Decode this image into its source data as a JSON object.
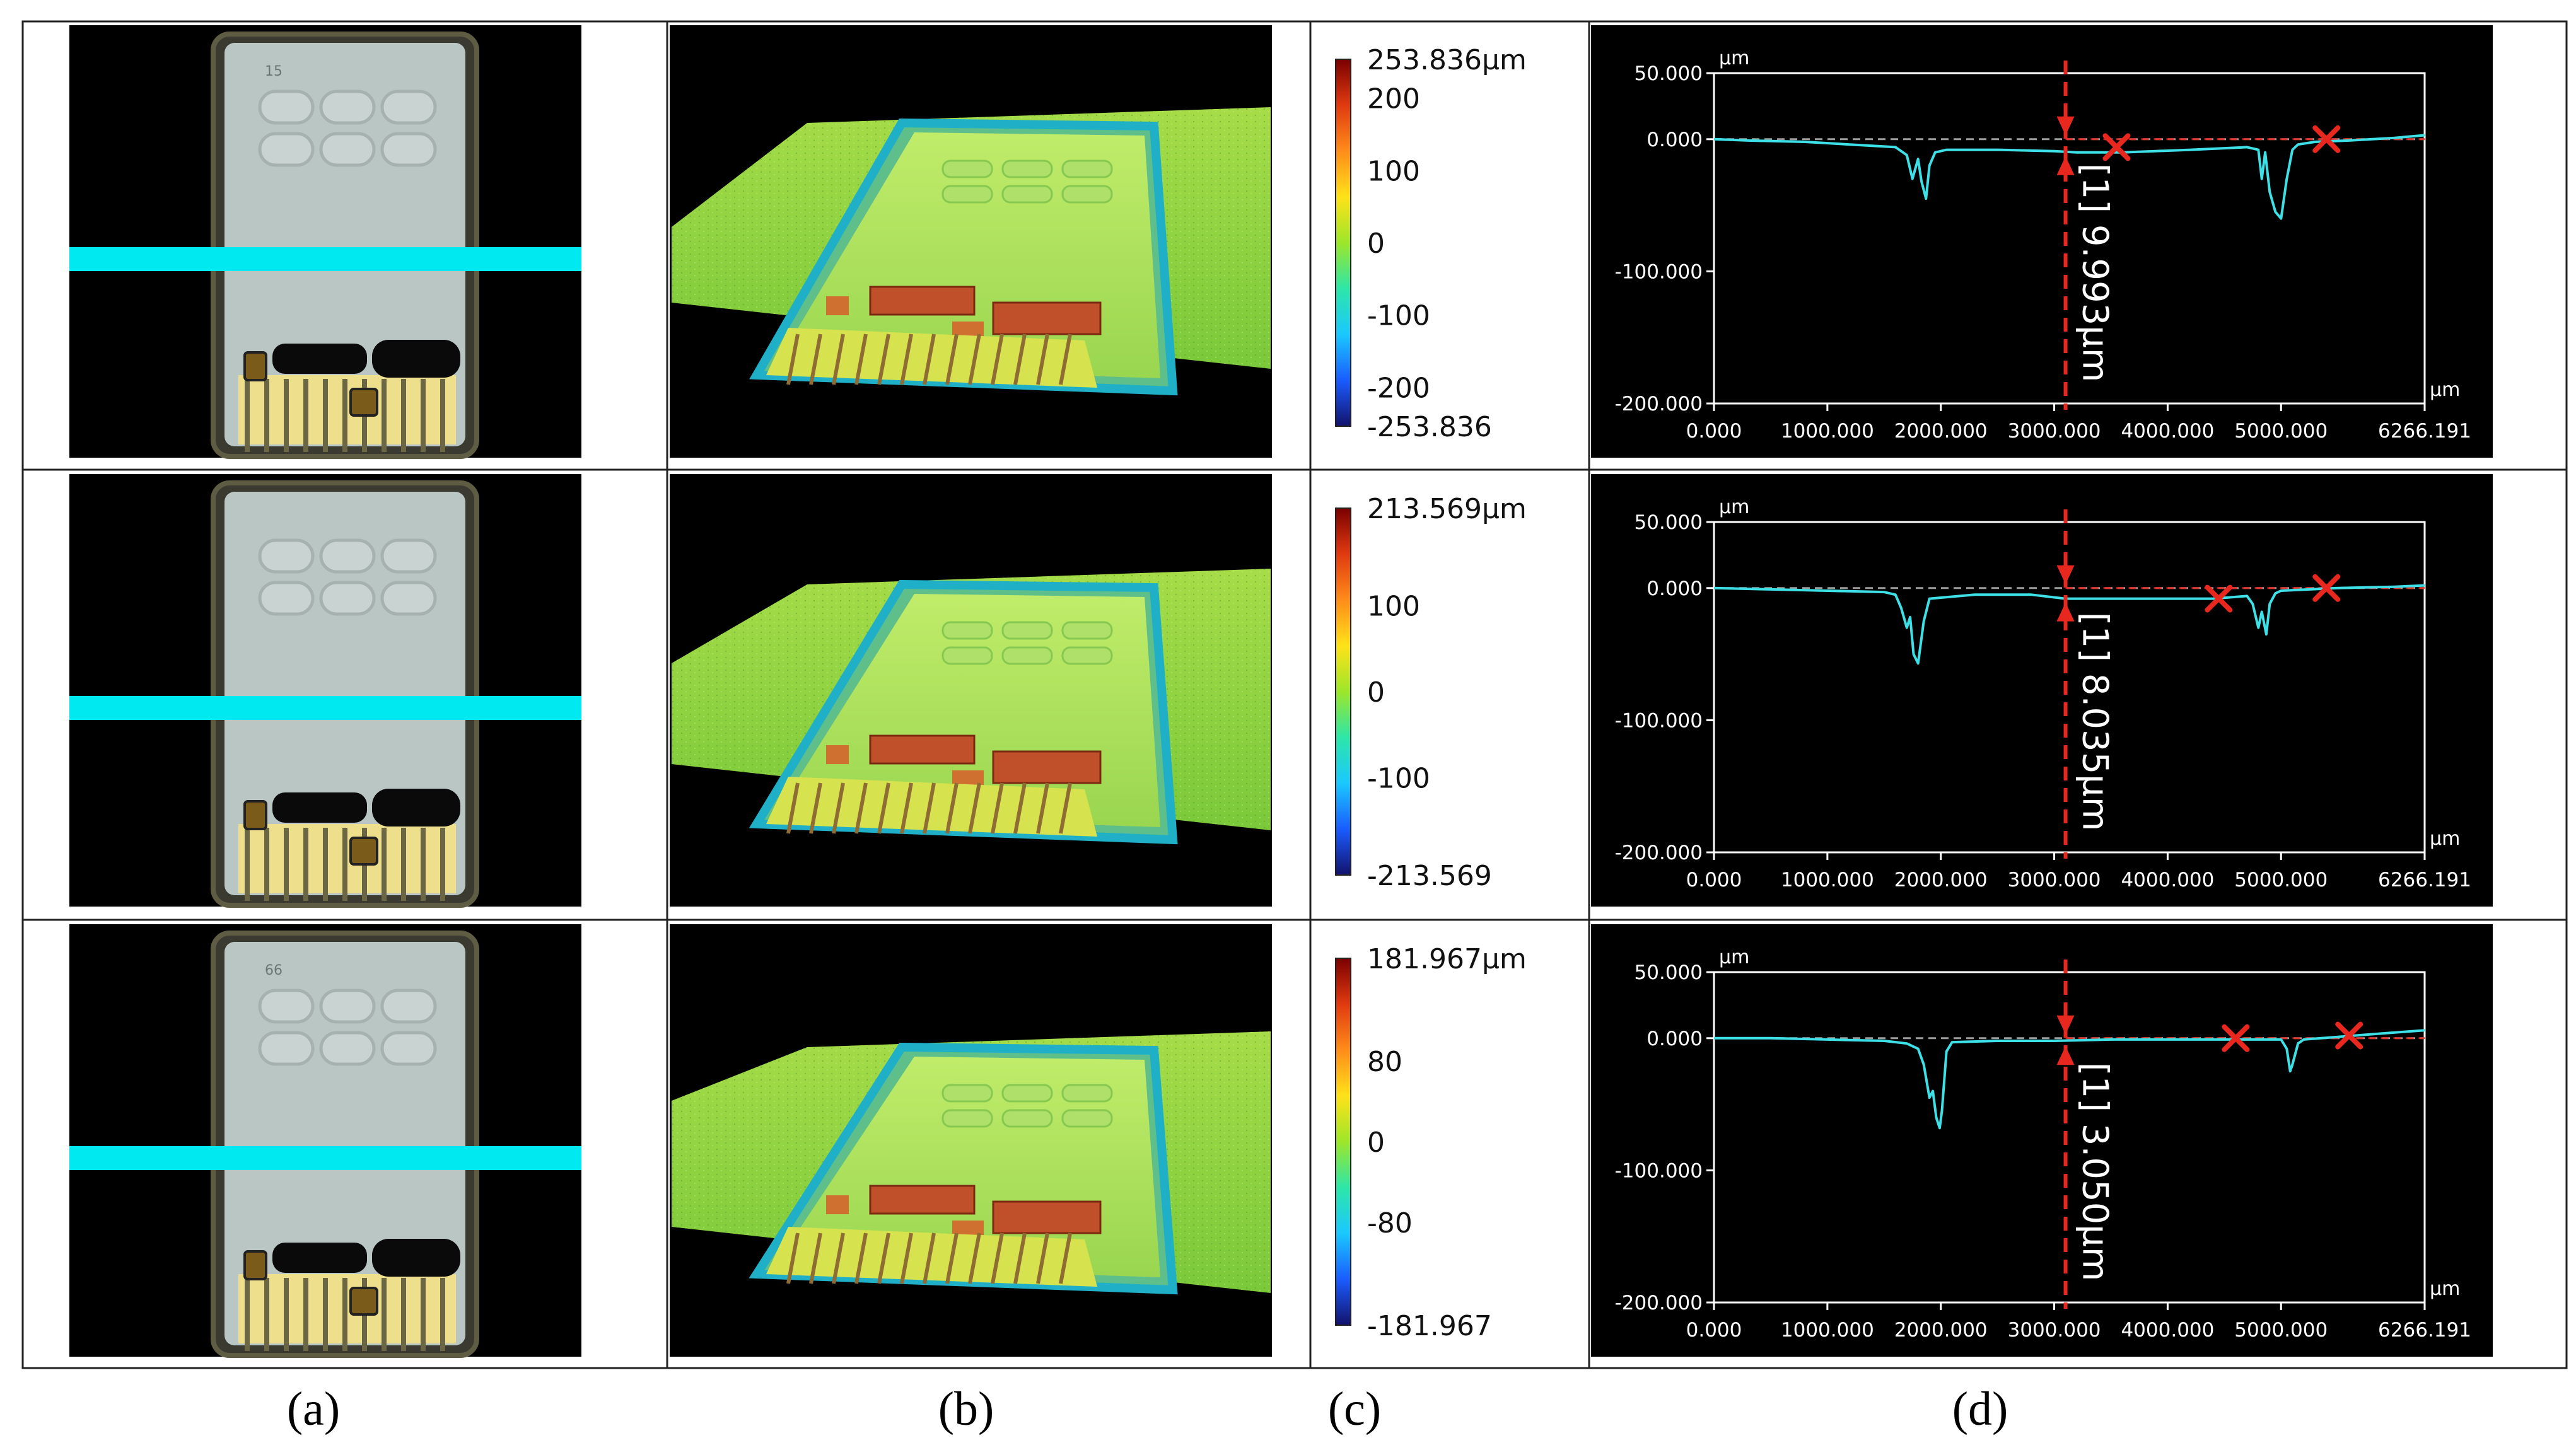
{
  "figure": {
    "captions": [
      "(a)",
      "(b)",
      "(c)",
      "(d)"
    ]
  },
  "colorbar_gradient": [
    "#7a0000",
    "#e03a10",
    "#ff8c1a",
    "#ffe21a",
    "#9de62a",
    "#2ee6a8",
    "#1ac8ff",
    "#1a5cff",
    "#12126b"
  ],
  "colors": {
    "profile_line": "#3de0e6",
    "marker": "#e8281e",
    "scan_line": "#00e8f0",
    "axis": "#ffffff"
  },
  "chart_data": [
    {
      "type": "line",
      "row": 1,
      "x_unit": "µm",
      "y_unit": "µm",
      "xlim": [
        0,
        6266.191
      ],
      "ylim": [
        -200,
        50
      ],
      "x_ticks": [
        "0.000",
        "1000.000",
        "2000.000",
        "3000.000",
        "4000.000",
        "5000.000",
        "6266.191"
      ],
      "x_tick_values": [
        0,
        1000,
        2000,
        3000,
        4000,
        5000,
        6266.191
      ],
      "y_ticks": [
        "50.000",
        "0.000",
        "-100.000",
        "-200.000"
      ],
      "y_tick_values": [
        50,
        0,
        -100,
        -200
      ],
      "series": [
        {
          "name": "profile",
          "x": [
            0,
            300,
            800,
            1200,
            1600,
            1700,
            1750,
            1800,
            1830,
            1870,
            1900,
            1950,
            2050,
            2500,
            3000,
            3200,
            3600,
            4200,
            4700,
            4800,
            4830,
            4860,
            4900,
            4950,
            5000,
            5050,
            5100,
            5150,
            5300,
            5600,
            6000,
            6266
          ],
          "values": [
            0,
            -1,
            -2,
            -4,
            -6,
            -12,
            -30,
            -15,
            -32,
            -45,
            -20,
            -10,
            -8,
            -8,
            -9,
            -10,
            -10,
            -8,
            -6,
            -8,
            -30,
            -10,
            -40,
            -55,
            -60,
            -30,
            -8,
            -4,
            -2,
            -1,
            1,
            3
          ]
        }
      ],
      "annotation": {
        "label": "[1] 9.993µm",
        "x": 3100,
        "y_start": 0,
        "y_end": -9.993
      },
      "cursor_marks": [
        {
          "x": 3550,
          "y": -6
        },
        {
          "x": 5400,
          "y": 0
        }
      ]
    },
    {
      "type": "line",
      "row": 2,
      "x_unit": "µm",
      "y_unit": "µm",
      "xlim": [
        0,
        6266.191
      ],
      "ylim": [
        -200,
        50
      ],
      "x_ticks": [
        "0.000",
        "1000.000",
        "2000.000",
        "3000.000",
        "4000.000",
        "5000.000",
        "6266.191"
      ],
      "x_tick_values": [
        0,
        1000,
        2000,
        3000,
        4000,
        5000,
        6266.191
      ],
      "y_ticks": [
        "50.000",
        "0.000",
        "-100.000",
        "-200.000"
      ],
      "y_tick_values": [
        50,
        0,
        -100,
        -200
      ],
      "series": [
        {
          "name": "profile",
          "x": [
            0,
            500,
            1000,
            1500,
            1600,
            1650,
            1700,
            1730,
            1760,
            1800,
            1850,
            1900,
            2300,
            2800,
            3100,
            3500,
            4000,
            4400,
            4700,
            4750,
            4800,
            4830,
            4870,
            4900,
            4950,
            5000,
            5500,
            6000,
            6266
          ],
          "values": [
            0,
            -1,
            -2,
            -3,
            -5,
            -15,
            -30,
            -22,
            -50,
            -57,
            -25,
            -8,
            -5,
            -5,
            -8,
            -8,
            -8,
            -8,
            -6,
            -12,
            -30,
            -18,
            -35,
            -12,
            -4,
            -2,
            0,
            1,
            2
          ]
        }
      ],
      "annotation": {
        "label": "[1] 8.035µm",
        "x": 3100,
        "y_start": 0,
        "y_end": -8.035
      },
      "cursor_marks": [
        {
          "x": 4450,
          "y": -8
        },
        {
          "x": 5400,
          "y": 0
        }
      ]
    },
    {
      "type": "line",
      "row": 3,
      "x_unit": "µm",
      "y_unit": "µm",
      "xlim": [
        0,
        6266.191
      ],
      "ylim": [
        -200,
        50
      ],
      "x_ticks": [
        "0.000",
        "1000.000",
        "2000.000",
        "3000.000",
        "4000.000",
        "5000.000",
        "6266.191"
      ],
      "x_tick_values": [
        0,
        1000,
        2000,
        3000,
        4000,
        5000,
        6266.191
      ],
      "y_ticks": [
        "50.000",
        "0.000",
        "-100.000",
        "-200.000"
      ],
      "y_tick_values": [
        50,
        0,
        -100,
        -200
      ],
      "series": [
        {
          "name": "profile",
          "x": [
            0,
            500,
            1000,
            1500,
            1700,
            1800,
            1850,
            1900,
            1930,
            1960,
            1990,
            2010,
            2050,
            2100,
            2500,
            3000,
            3500,
            4000,
            4500,
            5000,
            5050,
            5080,
            5100,
            5150,
            5200,
            5500,
            5800,
            6266
          ],
          "values": [
            0,
            0,
            -1,
            -2,
            -4,
            -8,
            -20,
            -45,
            -40,
            -60,
            -68,
            -55,
            -10,
            -3,
            -2,
            -2,
            -1,
            -1,
            -1,
            -1,
            -8,
            -25,
            -20,
            -4,
            -1,
            1,
            3,
            6
          ]
        }
      ],
      "annotation": {
        "label": "[1] 3.050µm",
        "x": 3100,
        "y_start": 0,
        "y_end": -3.05
      },
      "cursor_marks": [
        {
          "x": 4600,
          "y": 0
        },
        {
          "x": 5600,
          "y": 2
        }
      ]
    }
  ],
  "colorbars": [
    {
      "max_label": "253.836µm",
      "min_label": "-253.836",
      "ticks": [
        {
          "label": "200",
          "value": 200
        },
        {
          "label": "100",
          "value": 100
        },
        {
          "label": "0",
          "value": 0
        },
        {
          "label": "-100",
          "value": -100
        },
        {
          "label": "-200",
          "value": -200
        }
      ],
      "range": 253.836
    },
    {
      "max_label": "213.569µm",
      "min_label": "-213.569",
      "ticks": [
        {
          "label": "100",
          "value": 100
        },
        {
          "label": "0",
          "value": 0
        },
        {
          "label": "-100",
          "value": -100
        }
      ],
      "range": 213.569
    },
    {
      "max_label": "181.967µm",
      "min_label": "-181.967",
      "ticks": [
        {
          "label": "80",
          "value": 80
        },
        {
          "label": "0",
          "value": 0
        },
        {
          "label": "-80",
          "value": -80
        }
      ],
      "range": 181.967
    }
  ],
  "photos": [
    {
      "pad_label": "15"
    },
    {
      "pad_label": ""
    },
    {
      "pad_label": "66"
    }
  ]
}
